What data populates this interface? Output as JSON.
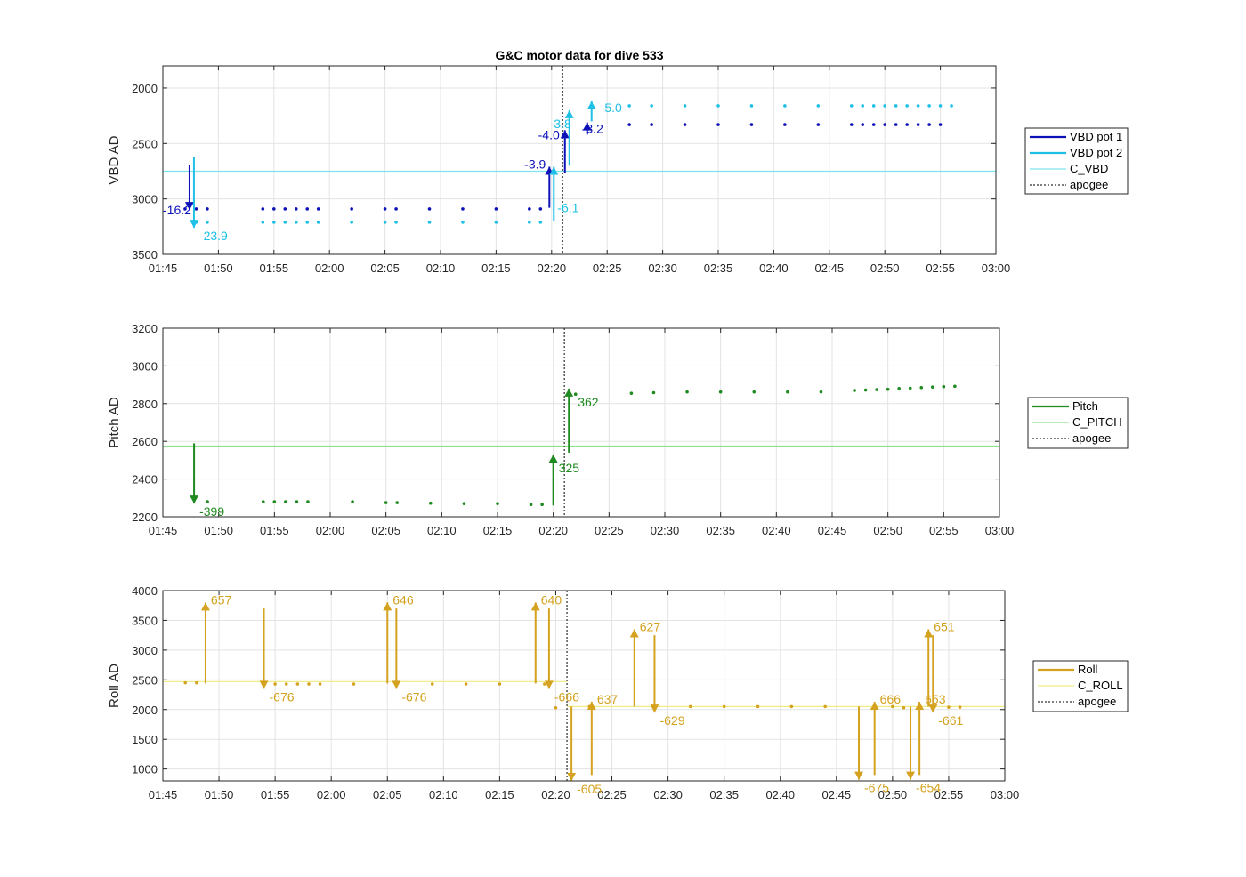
{
  "figure": {
    "title": "G&C motor data for dive 533"
  },
  "chart_data": [
    {
      "type": "scatter",
      "title": "G&C motor data for dive 533",
      "ylabel": "VBD AD",
      "ylim": [
        1800,
        3500
      ],
      "y_reversed": true,
      "yticks": [
        2000,
        2500,
        3000,
        3500
      ],
      "ytick_labels": [
        "2000",
        "2500",
        "3000",
        "3500"
      ],
      "xlim": [
        "01:45",
        "03:00"
      ],
      "xtick_labels": [
        "01:45",
        "01:50",
        "01:55",
        "02:00",
        "02:05",
        "02:10",
        "02:15",
        "02:20",
        "02:25",
        "02:30",
        "02:35",
        "02:40",
        "02:45",
        "02:50",
        "02:55",
        "03:00"
      ],
      "grid": true,
      "legend_position": "right",
      "legend": [
        "VBD pot 1",
        "VBD pot 2",
        "C_VBD",
        "apogee"
      ],
      "colors": {
        "pot1": "#0d12b8",
        "pot2": "#1ec0e6",
        "ref": "#7fe3ef",
        "apogee": "#555555"
      },
      "series": [
        {
          "name": "VBD pot 1",
          "color": "#0d12b8",
          "x": [
            "01:47",
            "01:48",
            "01:49",
            "01:54",
            "01:55",
            "01:56",
            "01:57",
            "01:58",
            "01:59",
            "02:02",
            "02:05",
            "02:06",
            "02:09",
            "02:12",
            "02:15",
            "02:18",
            "02:19",
            "02:27",
            "02:29",
            "02:32",
            "02:35",
            "02:38",
            "02:41",
            "02:44",
            "02:47",
            "02:48",
            "02:49",
            "02:50",
            "02:51",
            "02:52",
            "02:53",
            "02:54",
            "02:55"
          ],
          "y": [
            3090,
            3090,
            3090,
            3090,
            3090,
            3090,
            3090,
            3090,
            3090,
            3090,
            3090,
            3090,
            3090,
            3090,
            3090,
            3090,
            3090,
            2330,
            2330,
            2330,
            2330,
            2330,
            2330,
            2330,
            2330,
            2330,
            2330,
            2330,
            2330,
            2330,
            2330,
            2330,
            2330
          ]
        },
        {
          "name": "VBD pot 2",
          "color": "#1ec0e6",
          "x": [
            "01:48",
            "01:49",
            "01:54",
            "01:55",
            "01:56",
            "01:57",
            "01:58",
            "01:59",
            "02:02",
            "02:05",
            "02:06",
            "02:09",
            "02:12",
            "02:15",
            "02:18",
            "02:19",
            "02:27",
            "02:29",
            "02:32",
            "02:35",
            "02:38",
            "02:41",
            "02:44",
            "02:47",
            "02:48",
            "02:49",
            "02:50",
            "02:51",
            "02:52",
            "02:53",
            "02:54",
            "02:55",
            "02:56"
          ],
          "y": [
            3210,
            3210,
            3210,
            3210,
            3210,
            3210,
            3210,
            3210,
            3210,
            3210,
            3210,
            3210,
            3210,
            3210,
            3210,
            3210,
            2160,
            2160,
            2160,
            2160,
            2160,
            2160,
            2160,
            2160,
            2160,
            2160,
            2160,
            2160,
            2160,
            2160,
            2160,
            2160,
            2160
          ]
        }
      ],
      "reference_line": {
        "name": "C_VBD",
        "y": 2750
      },
      "apogee": "02:21",
      "moves": [
        {
          "series": "VBD pot 1",
          "x": "01:47.4",
          "y_from": 2690,
          "y_to": 3100,
          "label": "-16.2"
        },
        {
          "series": "VBD pot 2",
          "x": "01:47.8",
          "y_from": 2620,
          "y_to": 3260,
          "label": "-23.9"
        },
        {
          "series": "VBD pot 1",
          "x": "02:19.8",
          "y_from": 3080,
          "y_to": 2710,
          "label": "-3.9"
        },
        {
          "series": "VBD pot 2",
          "x": "02:20.2",
          "y_from": 3200,
          "y_to": 2710,
          "label": "-6.1"
        },
        {
          "series": "VBD pot 1",
          "x": "02:21.2",
          "y_from": 2770,
          "y_to": 2380,
          "label": "-4.0"
        },
        {
          "series": "VBD pot 2",
          "x": "02:21.6",
          "y_from": 2700,
          "y_to": 2200,
          "label": "-3.8"
        },
        {
          "series": "VBD pot 1",
          "x": "02:23.2",
          "y_from": 2420,
          "y_to": 2310,
          "label": "-3.2"
        },
        {
          "series": "VBD pot 2",
          "x": "02:23.6",
          "y_from": 2300,
          "y_to": 2120,
          "label": "-5.0"
        }
      ]
    },
    {
      "type": "scatter",
      "ylabel": "Pitch AD",
      "ylim": [
        2200,
        3200
      ],
      "yticks": [
        2200,
        2400,
        2600,
        2800,
        3000,
        3200
      ],
      "ytick_labels": [
        "2200",
        "2400",
        "2600",
        "2800",
        "3000",
        "3200"
      ],
      "xlim": [
        "01:45",
        "03:00"
      ],
      "xtick_labels": [
        "01:45",
        "01:50",
        "01:55",
        "02:00",
        "02:05",
        "02:10",
        "02:15",
        "02:20",
        "02:25",
        "02:30",
        "02:35",
        "02:40",
        "02:45",
        "02:50",
        "02:55",
        "03:00"
      ],
      "grid": true,
      "legend_position": "right",
      "legend": [
        "Pitch",
        "C_PITCH",
        "apogee"
      ],
      "colors": {
        "main": "#1f8a1f",
        "ref": "#8fe08f",
        "apogee": "#555555"
      },
      "series": [
        {
          "name": "Pitch",
          "color": "#1f8a1f",
          "x": [
            "01:49",
            "01:54",
            "01:55",
            "01:56",
            "01:57",
            "01:58",
            "02:02",
            "02:05",
            "02:06",
            "02:09",
            "02:12",
            "02:15",
            "02:18",
            "02:19",
            "02:22",
            "02:27",
            "02:29",
            "02:32",
            "02:35",
            "02:38",
            "02:41",
            "02:44",
            "02:47",
            "02:48",
            "02:49",
            "02:50",
            "02:51",
            "02:52",
            "02:53",
            "02:54",
            "02:55",
            "02:56"
          ],
          "y": [
            2280,
            2280,
            2280,
            2280,
            2280,
            2280,
            2280,
            2275,
            2275,
            2272,
            2270,
            2270,
            2265,
            2265,
            2850,
            2855,
            2858,
            2862,
            2862,
            2862,
            2862,
            2862,
            2870,
            2872,
            2874,
            2876,
            2880,
            2882,
            2885,
            2888,
            2890,
            2892
          ]
        }
      ],
      "reference_line": {
        "name": "C_PITCH",
        "y": 2575
      },
      "apogee": "02:21",
      "moves": [
        {
          "series": "Pitch",
          "x": "01:47.8",
          "y_from": 2590,
          "y_to": 2270,
          "label": "-399"
        },
        {
          "series": "Pitch",
          "x": "02:20",
          "y_from": 2260,
          "y_to": 2530,
          "label": "325"
        },
        {
          "series": "Pitch",
          "x": "02:21.4",
          "y_from": 2540,
          "y_to": 2880,
          "label": "362"
        }
      ]
    },
    {
      "type": "scatter",
      "ylabel": "Roll AD",
      "ylim": [
        800,
        4000
      ],
      "yticks": [
        1000,
        1500,
        2000,
        2500,
        3000,
        3500,
        4000
      ],
      "ytick_labels": [
        "1000",
        "1500",
        "2000",
        "2500",
        "3000",
        "3500",
        "4000"
      ],
      "xlim": [
        "01:45",
        "03:00"
      ],
      "xtick_labels": [
        "01:45",
        "01:50",
        "01:55",
        "02:00",
        "02:05",
        "02:10",
        "02:15",
        "02:20",
        "02:25",
        "02:30",
        "02:35",
        "02:40",
        "02:45",
        "02:50",
        "02:55",
        "03:00"
      ],
      "grid": true,
      "legend_position": "right",
      "legend": [
        "Roll",
        "C_ROLL",
        "apogee"
      ],
      "colors": {
        "main": "#d4a21f",
        "ref": "#f0ea80",
        "apogee": "#555555"
      },
      "series": [
        {
          "name": "Roll",
          "color": "#d4a21f",
          "x": [
            "01:47",
            "01:48",
            "01:55",
            "01:56",
            "01:57",
            "01:58",
            "01:59",
            "02:02",
            "02:09",
            "02:12",
            "02:15",
            "02:19",
            "02:20",
            "02:23",
            "02:32",
            "02:35",
            "02:38",
            "02:41",
            "02:44",
            "02:50",
            "02:51",
            "02:55",
            "02:56"
          ],
          "y": [
            2450,
            2450,
            2430,
            2430,
            2430,
            2430,
            2430,
            2430,
            2430,
            2430,
            2430,
            2430,
            2030,
            2050,
            2050,
            2050,
            2050,
            2050,
            2050,
            2050,
            2030,
            2040,
            2040
          ]
        }
      ],
      "reference_line": {
        "name": "C_ROLL",
        "y_segments": [
          {
            "from": "01:45",
            "to": "02:21",
            "y": 2470
          },
          {
            "from": "02:21",
            "to": "03:00",
            "y": 2050
          }
        ]
      },
      "apogee": "02:21",
      "moves": [
        {
          "series": "Roll",
          "x": "01:48.8",
          "y_from": 2440,
          "y_to": 3800,
          "label": "657"
        },
        {
          "series": "Roll",
          "x": "01:54",
          "y_from": 3700,
          "y_to": 2350,
          "label": "-676"
        },
        {
          "series": "Roll",
          "x": "02:05",
          "y_from": 2440,
          "y_to": 3800,
          "label": "646"
        },
        {
          "series": "Roll",
          "x": "02:05.8",
          "y_from": 3700,
          "y_to": 2350,
          "label": "-676"
        },
        {
          "series": "Roll",
          "x": "02:18.2",
          "y_from": 2440,
          "y_to": 3800,
          "label": "640"
        },
        {
          "series": "Roll",
          "x": "02:19.4",
          "y_from": 3700,
          "y_to": 2350,
          "label": "-666"
        },
        {
          "series": "Roll",
          "x": "02:21.4",
          "y_from": 2050,
          "y_to": 800,
          "label": "-605"
        },
        {
          "series": "Roll",
          "x": "02:23.2",
          "y_from": 900,
          "y_to": 2130,
          "label": "637"
        },
        {
          "series": "Roll",
          "x": "02:27",
          "y_from": 2050,
          "y_to": 3350,
          "label": "627"
        },
        {
          "series": "Roll",
          "x": "02:28.8",
          "y_from": 3250,
          "y_to": 1950,
          "label": "-629"
        },
        {
          "series": "Roll",
          "x": "02:47",
          "y_from": 2050,
          "y_to": 820,
          "label": "-675"
        },
        {
          "series": "Roll",
          "x": "02:48.4",
          "y_from": 900,
          "y_to": 2130,
          "label": "666"
        },
        {
          "series": "Roll",
          "x": "02:51.6",
          "y_from": 2050,
          "y_to": 820,
          "label": "-654"
        },
        {
          "series": "Roll",
          "x": "02:52.4",
          "y_from": 900,
          "y_to": 2130,
          "label": "653"
        },
        {
          "series": "Roll",
          "x": "02:53.2",
          "y_from": 2050,
          "y_to": 3350,
          "label": "651"
        },
        {
          "series": "Roll",
          "x": "02:53.6",
          "y_from": 3250,
          "y_to": 1950,
          "label": "-661"
        }
      ]
    }
  ]
}
